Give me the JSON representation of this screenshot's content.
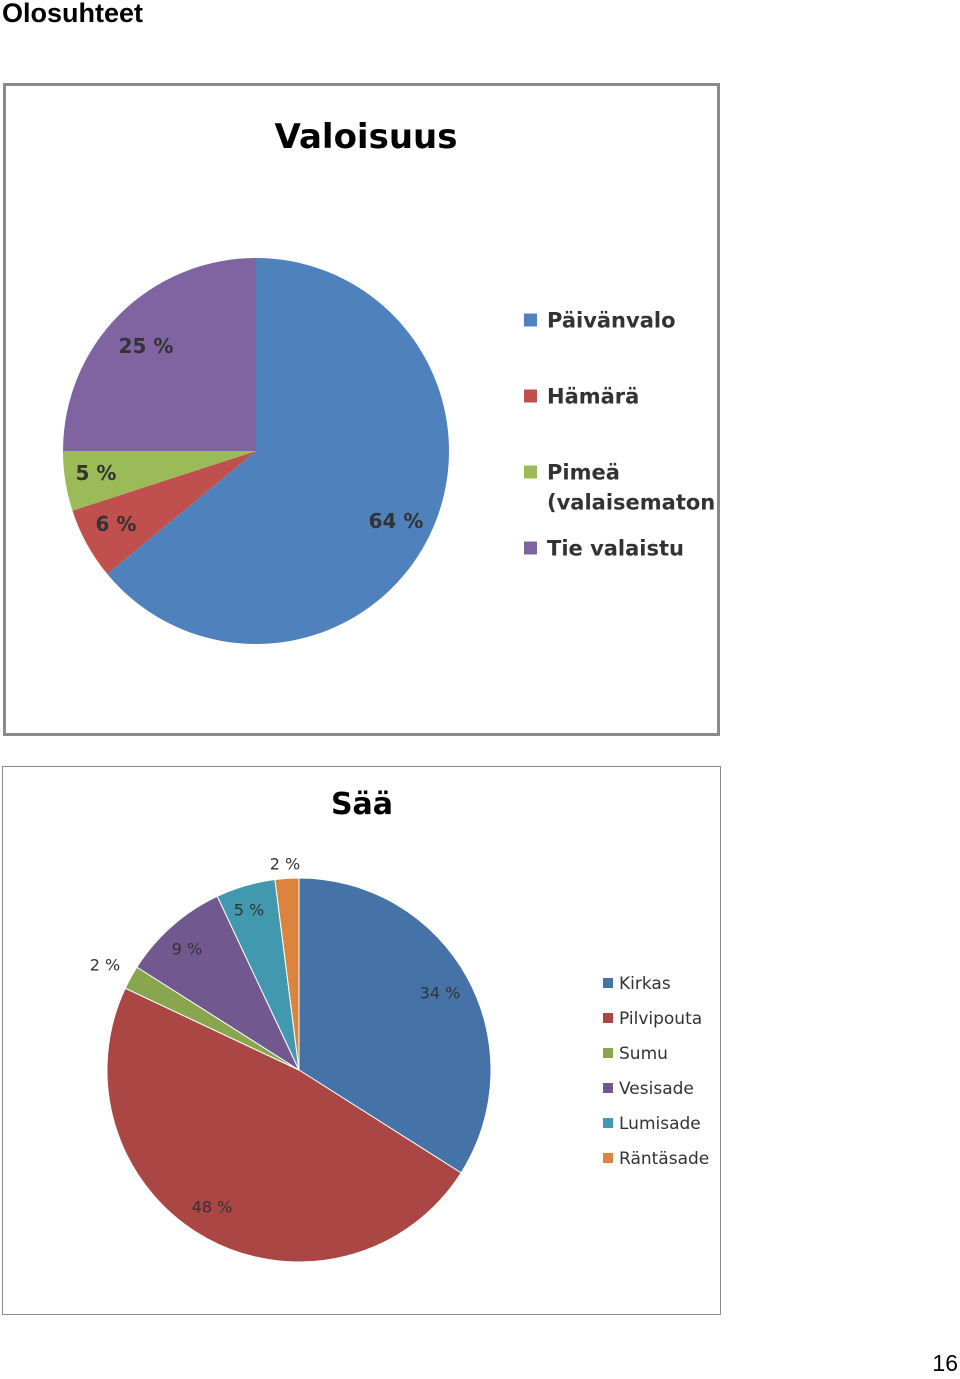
{
  "page": {
    "heading": "Olosuhteet",
    "page_number": "16"
  },
  "chart_data": [
    {
      "type": "pie",
      "title": "Valoisuus",
      "categories": [
        "Päivänvalo",
        "Hämärä",
        "Pimeä (valaisematon)",
        "Tie valaistu"
      ],
      "legend_lines": [
        [
          "Päivänvalo"
        ],
        [
          "Hämärä"
        ],
        [
          "Pimeä",
          "(valaisematon)"
        ],
        [
          "Tie valaistu"
        ]
      ],
      "values": [
        64,
        6,
        5,
        25
      ],
      "labels": [
        "64 %",
        "6 %",
        "5 %",
        "25 %"
      ],
      "colors": [
        "#4F81BD",
        "#C0504D",
        "#9BBB59",
        "#8064A2"
      ],
      "legend_position": "right"
    },
    {
      "type": "pie",
      "title": "Sää",
      "categories": [
        "Kirkas",
        "Pilvipouta",
        "Sumu",
        "Vesisade",
        "Lumisade",
        "Räntäsade"
      ],
      "legend_lines": [
        [
          "Kirkas"
        ],
        [
          "Pilvipouta"
        ],
        [
          "Sumu"
        ],
        [
          "Vesisade"
        ],
        [
          "Lumisade"
        ],
        [
          "Räntäsade"
        ]
      ],
      "values": [
        34,
        48,
        2,
        9,
        5,
        2
      ],
      "labels": [
        "34 %",
        "48 %",
        "2 %",
        "9 %",
        "5 %",
        "2 %"
      ],
      "colors": [
        "#4572A7",
        "#AA4643",
        "#89A54E",
        "#71588F",
        "#4198AF",
        "#DB843D"
      ],
      "legend_position": "right"
    }
  ]
}
